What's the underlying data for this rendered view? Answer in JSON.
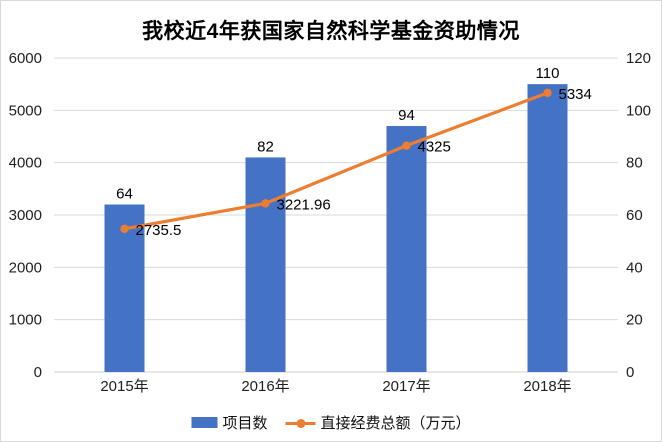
{
  "title": "我校近4年获国家自然科学基金资助情况",
  "colors": {
    "bar": "#4472C4",
    "line": "#ED7D31",
    "grid": "#D9D9D9",
    "axis_line": "#D0D0D0",
    "tick_text": "#1f1f1f",
    "label_text": "#000000",
    "border": "#D9D9D9"
  },
  "chart_data": {
    "type": "bar+line combo",
    "title": "我校近4年获国家自然科学基金资助情况",
    "categories": [
      "2015年",
      "2016年",
      "2017年",
      "2018年"
    ],
    "series": [
      {
        "name": "项目数",
        "type": "bar",
        "axis": "right",
        "color": "#4472C4",
        "values": [
          64,
          82,
          94,
          110
        ],
        "labels": [
          "64",
          "82",
          "94",
          "110"
        ]
      },
      {
        "name": "直接经费总额（万元）",
        "type": "line",
        "axis": "left",
        "color": "#ED7D31",
        "values": [
          2735.5,
          3221.96,
          4325,
          5334
        ],
        "labels": [
          "2735.5",
          "3221.96",
          "4325",
          "5334"
        ]
      }
    ],
    "axes": {
      "left": {
        "min": 0,
        "max": 6000,
        "step": 1000,
        "ticks": [
          "0",
          "1000",
          "2000",
          "3000",
          "4000",
          "5000",
          "6000"
        ]
      },
      "right": {
        "min": 0,
        "max": 120,
        "step": 20,
        "ticks": [
          "0",
          "20",
          "40",
          "60",
          "80",
          "100",
          "120"
        ]
      }
    },
    "grid": true,
    "legend_position": "bottom"
  }
}
